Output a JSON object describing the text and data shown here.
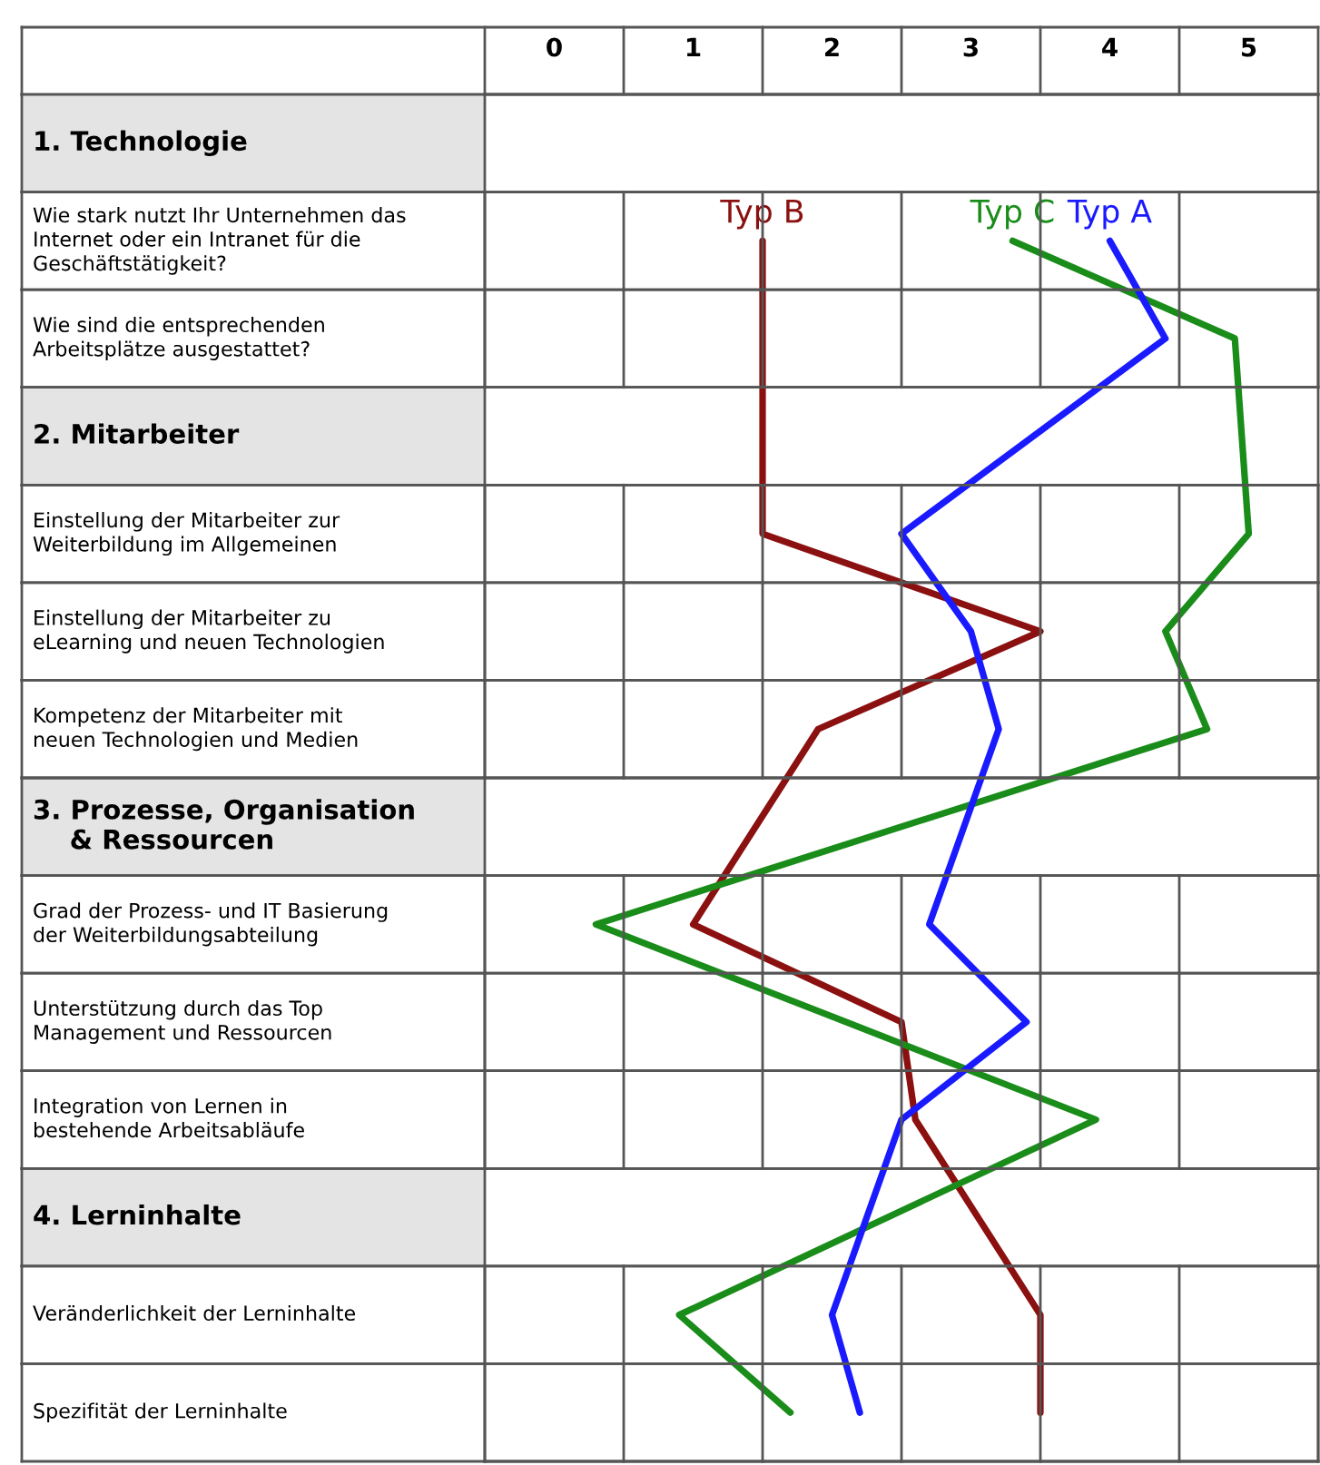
{
  "chart_data": {
    "type": "line",
    "orientation": "horizontal",
    "categories": [
      "1. Technologie",
      "Wie stark nutzt Ihr Unternehmen das\nInternet oder ein Intranet für die\nGeschäftstätigkeit?",
      "Wie sind die entsprechenden\nArbeitsplätze ausgestattet?",
      "2. Mitarbeiter",
      "Einstellung der Mitarbeiter zur\nWeiterbildung im Allgemeinen",
      "Einstellung der Mitarbeiter zu\neLearning und neuen Technologien",
      "Kompetenz der Mitarbeiter mit\nneuen Technologien und Medien",
      "3. Prozesse, Organisation\n    & Ressourcen",
      "Grad der Prozess- und IT Basierung\nder Weiterbildungsabteilung",
      "Unterstützung durch das Top\nManagement und Ressourcen",
      "Integration von Lernen in\nbestehende Arbeitsabläufe",
      "4. Lerninhalte",
      "Veränderlichkeit der Lerninhalte",
      "Spezifität der Lerninhalte"
    ],
    "series": [
      {
        "name": "Typ B",
        "color": "#8b1010",
        "values": [
          null,
          1.5,
          1.5,
          null,
          1.5,
          3.5,
          1.9,
          null,
          1.0,
          2.5,
          2.6,
          null,
          3.5,
          3.5
        ]
      },
      {
        "name": "Typ C",
        "color": "#1a8c1a",
        "values": [
          null,
          3.3,
          4.9,
          null,
          5.0,
          4.4,
          4.7,
          null,
          0.3,
          2.1,
          3.9,
          null,
          0.9,
          1.7
        ]
      },
      {
        "name": "Typ A",
        "color": "#1a1aff",
        "values": [
          null,
          4.0,
          4.4,
          null,
          2.5,
          3.0,
          3.2,
          null,
          2.7,
          3.4,
          2.5,
          null,
          2.0,
          2.2
        ]
      }
    ],
    "xlim": [
      -0.5,
      5.5
    ],
    "xticks": [
      0,
      1,
      2,
      3,
      4,
      5
    ]
  }
}
